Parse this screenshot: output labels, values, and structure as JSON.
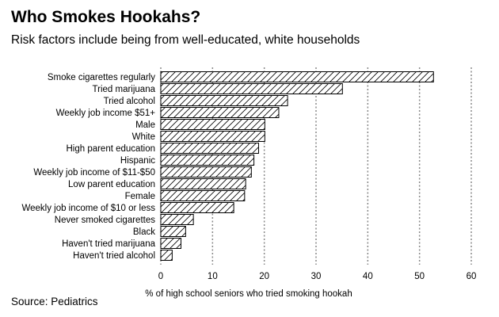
{
  "chart_data": {
    "type": "bar",
    "orientation": "horizontal",
    "title": "Who Smokes Hookahs?",
    "subtitle": "Risk factors include being from well-educated, white households",
    "xlabel": "% of high school seniors who tried smoking hookah",
    "source": "Source: Pediatrics",
    "xlim": [
      0,
      60
    ],
    "xticks": [
      0,
      10,
      20,
      30,
      40,
      50,
      60
    ],
    "grid": "vertical dotted",
    "bar_fill": "diagonal hatch",
    "categories": [
      "Smoke cigarettes regularly",
      "Tried marijuana",
      "Tried alcohol",
      "Weekly job income $51+",
      "Male",
      "White",
      "High parent education",
      "Hispanic",
      "Weekly job income of $11-$50",
      "Low parent education",
      "Female",
      "Weekly job income of $10 or less",
      "Never smoked cigarettes",
      "Black",
      "Haven't tried marijuana",
      "Haven't tried alcohol"
    ],
    "values": [
      52.7,
      35.1,
      24.5,
      22.8,
      20.1,
      20.1,
      18.9,
      18.0,
      17.5,
      16.4,
      16.2,
      14.1,
      6.3,
      4.8,
      3.9,
      2.2
    ]
  }
}
